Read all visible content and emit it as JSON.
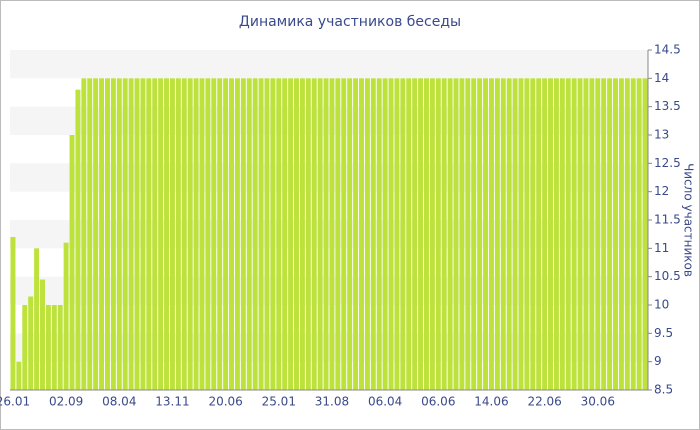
{
  "chart_data": {
    "type": "bar",
    "title": "Динамика участников беседы",
    "y_label": "Число участников",
    "categories": [
      "26.01",
      null,
      null,
      null,
      null,
      null,
      null,
      null,
      null,
      "02.09",
      null,
      null,
      null,
      null,
      null,
      null,
      null,
      null,
      "08.04",
      null,
      null,
      null,
      null,
      null,
      null,
      null,
      null,
      "13.11",
      null,
      null,
      null,
      null,
      null,
      null,
      null,
      null,
      "20.06",
      null,
      null,
      null,
      null,
      null,
      null,
      null,
      null,
      "25.01",
      null,
      null,
      null,
      null,
      null,
      null,
      null,
      null,
      "31.08",
      null,
      null,
      null,
      null,
      null,
      null,
      null,
      null,
      "06.04",
      null,
      null,
      null,
      null,
      null,
      null,
      null,
      null,
      "06.06",
      null,
      null,
      null,
      null,
      null,
      null,
      null,
      null,
      "14.06",
      null,
      null,
      null,
      null,
      null,
      null,
      null,
      null,
      "22.06",
      null,
      null,
      null,
      null,
      null,
      null,
      null,
      null,
      "30.06",
      null,
      null,
      null,
      null,
      null,
      null,
      null,
      null
    ],
    "values": [
      11.2,
      9,
      10,
      10.15,
      11,
      10.45,
      10,
      10,
      10,
      11.1,
      13,
      13.8,
      14,
      14,
      14,
      14,
      14,
      14,
      14,
      14,
      14,
      14,
      14,
      14,
      14,
      14,
      14,
      14,
      14,
      14,
      14,
      14,
      14,
      14,
      14,
      14,
      14,
      14,
      14,
      14,
      14,
      14,
      14,
      14,
      14,
      14,
      14,
      14,
      14,
      14,
      14,
      14,
      14,
      14,
      14,
      14,
      14,
      14,
      14,
      14,
      14,
      14,
      14,
      14,
      14,
      14,
      14,
      14,
      14,
      14,
      14,
      14,
      14,
      14,
      14,
      14,
      14,
      14,
      14,
      14,
      14,
      14,
      14,
      14,
      14,
      14,
      14,
      14,
      14,
      14,
      14,
      14,
      14,
      14,
      14,
      14,
      14,
      14,
      14,
      14,
      14,
      14,
      14,
      14,
      14,
      14,
      14,
      14
    ],
    "color": "#bde23c",
    "ylim": [
      8.5,
      14.5
    ],
    "yticks": [
      8.5,
      9,
      9.5,
      10,
      10.5,
      11,
      11.5,
      12,
      12.5,
      13,
      13.5,
      14,
      14.5
    ],
    "grid": true,
    "y_axis_side": "right"
  }
}
